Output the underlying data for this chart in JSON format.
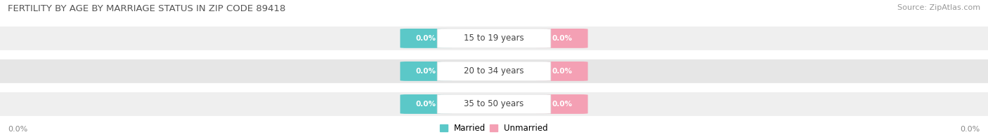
{
  "title": "FERTILITY BY AGE BY MARRIAGE STATUS IN ZIP CODE 89418",
  "source": "Source: ZipAtlas.com",
  "categories": [
    "15 to 19 years",
    "20 to 34 years",
    "35 to 50 years"
  ],
  "married_values": [
    0.0,
    0.0,
    0.0
  ],
  "unmarried_values": [
    0.0,
    0.0,
    0.0
  ],
  "married_color": "#5bc8c8",
  "unmarried_color": "#f4a0b4",
  "row_bg_colors": [
    "#efefef",
    "#e6e6e6",
    "#efefef"
  ],
  "title_fontsize": 9.5,
  "source_fontsize": 8,
  "legend_fontsize": 8.5,
  "category_fontsize": 8.5,
  "value_fontsize": 7.5,
  "axis_label_fontsize": 8,
  "background_color": "#ffffff",
  "axis_label": "0.0%"
}
